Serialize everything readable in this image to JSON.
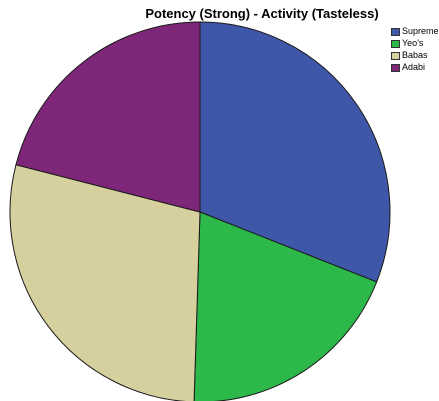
{
  "chart_data": {
    "type": "pie",
    "title": "Potency (Strong) - Activity (Tasteless)",
    "categories": [
      "Supreme",
      "Yeo's",
      "Babas",
      "Adabi"
    ],
    "values": [
      31.0,
      19.5,
      28.5,
      21.0
    ],
    "colors": [
      "#3F57A8",
      "#2DB84A",
      "#D6D09E",
      "#7E2779"
    ],
    "start_angle_deg": 0,
    "direction": "clockwise",
    "legend": {
      "position": "top-right",
      "entries": [
        "Supreme",
        "Yeo's",
        "Babas",
        "Adabi"
      ]
    }
  }
}
